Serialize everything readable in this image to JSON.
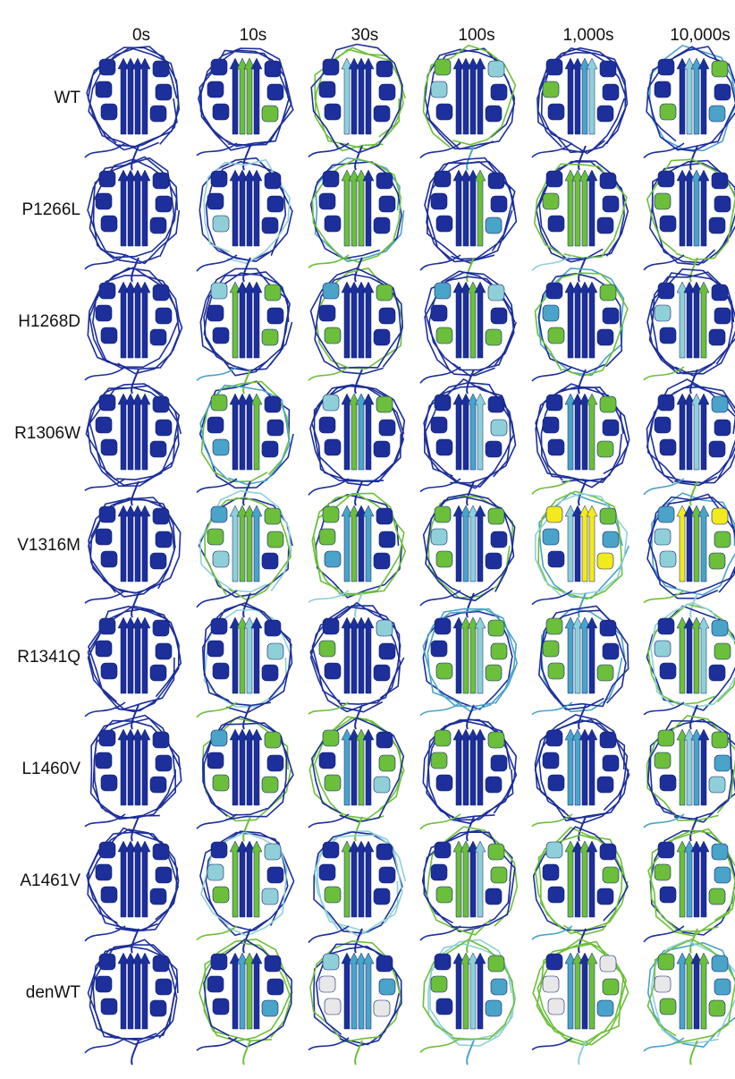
{
  "columns": [
    "0s",
    "10s",
    "30s",
    "100s",
    "1,000s",
    "10,000s"
  ],
  "rows": [
    "WT",
    "P1266L",
    "H1268D",
    "R1306W",
    "V1316M",
    "R1341Q",
    "L1460V",
    "A1461V",
    "denWT"
  ]
}
